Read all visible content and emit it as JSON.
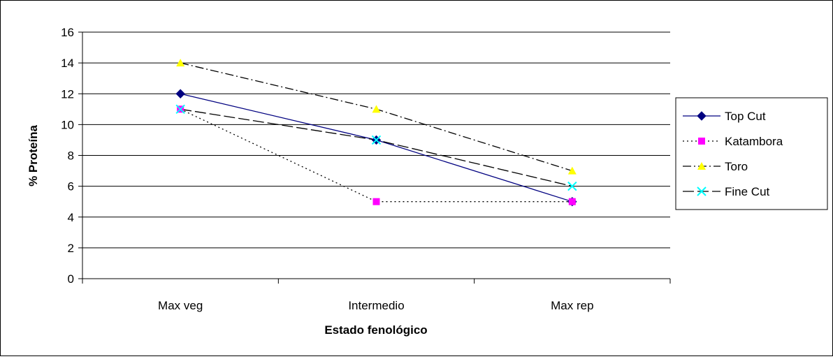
{
  "chart_data": {
    "type": "line",
    "title": "",
    "xlabel": "Estado fenológico",
    "ylabel": "% Proteína",
    "categories": [
      "Max veg",
      "Intermedio",
      "Max rep"
    ],
    "ylim": [
      0,
      16
    ],
    "yticks": [
      0,
      2,
      4,
      6,
      8,
      10,
      12,
      14,
      16
    ],
    "grid": "horizontal",
    "legend_position": "right",
    "series": [
      {
        "name": "Top Cut",
        "values": [
          12,
          9,
          5
        ],
        "color": "#000080",
        "dash": "solid",
        "marker": "diamond",
        "marker_color": "#000080"
      },
      {
        "name": "Katambora",
        "values": [
          11,
          5,
          5
        ],
        "color": "#000000",
        "dash": "dot",
        "marker": "square",
        "marker_color": "#FF00FF"
      },
      {
        "name": "Toro",
        "values": [
          14,
          11,
          7
        ],
        "color": "#000000",
        "dash": "dashdot",
        "marker": "triangle",
        "marker_color": "#FFFF00"
      },
      {
        "name": "Fine Cut",
        "values": [
          11,
          9,
          6
        ],
        "color": "#000000",
        "dash": "longdash",
        "marker": "x",
        "marker_color": "#00FFFF"
      }
    ]
  }
}
